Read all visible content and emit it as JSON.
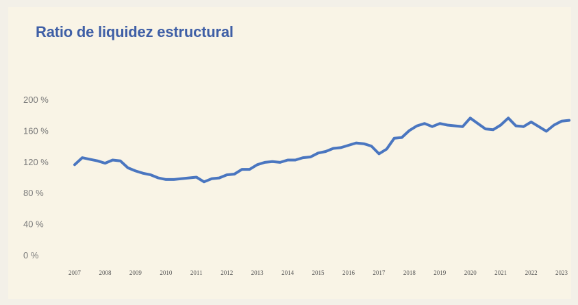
{
  "chart_data": {
    "type": "line",
    "title": "Ratio de liquidez estructural",
    "xlabel": "",
    "ylabel": "",
    "ylim": [
      0,
      200
    ],
    "grid": false,
    "legend": "none",
    "y_ticks": [
      "0 %",
      "40 %",
      "80 %",
      "120 %",
      "160 %",
      "200 %"
    ],
    "x_ticks": [
      "2007",
      "2008",
      "2009",
      "2010",
      "2011",
      "2012",
      "2013",
      "2014",
      "2015",
      "2016",
      "2017",
      "2018",
      "2019",
      "2020",
      "2021",
      "2022",
      "2023"
    ],
    "series": [
      {
        "color": "#4a76c0",
        "x": [
          2007.0,
          2007.25,
          2007.5,
          2007.75,
          2008.0,
          2008.25,
          2008.5,
          2008.75,
          2009.0,
          2009.25,
          2009.5,
          2009.75,
          2010.0,
          2010.25,
          2010.5,
          2010.75,
          2011.0,
          2011.25,
          2011.5,
          2011.75,
          2012.0,
          2012.25,
          2012.5,
          2012.75,
          2013.0,
          2013.25,
          2013.5,
          2013.75,
          2014.0,
          2014.25,
          2014.5,
          2014.75,
          2015.0,
          2015.25,
          2015.5,
          2015.75,
          2016.0,
          2016.25,
          2016.5,
          2016.75,
          2017.0,
          2017.25,
          2017.5,
          2017.75,
          2018.0,
          2018.25,
          2018.5,
          2018.75,
          2019.0,
          2019.25,
          2019.5,
          2019.75,
          2020.0,
          2020.25,
          2020.5,
          2020.75,
          2021.0,
          2021.25,
          2021.5,
          2021.75,
          2022.0,
          2022.25,
          2022.5,
          2022.75,
          2023.0,
          2023.25
        ],
        "values": [
          116,
          125,
          123,
          121,
          118,
          122,
          121,
          112,
          108,
          105,
          103,
          99,
          97,
          97,
          98,
          99,
          100,
          94,
          98,
          99,
          103,
          104,
          110,
          110,
          116,
          119,
          120,
          119,
          122,
          122,
          125,
          126,
          131,
          133,
          137,
          138,
          141,
          144,
          143,
          140,
          130,
          136,
          150,
          151,
          160,
          166,
          169,
          165,
          169,
          167,
          166,
          165,
          176,
          169,
          162,
          161,
          167,
          176,
          166,
          165,
          171,
          165,
          159,
          167,
          172,
          173
        ]
      }
    ]
  }
}
